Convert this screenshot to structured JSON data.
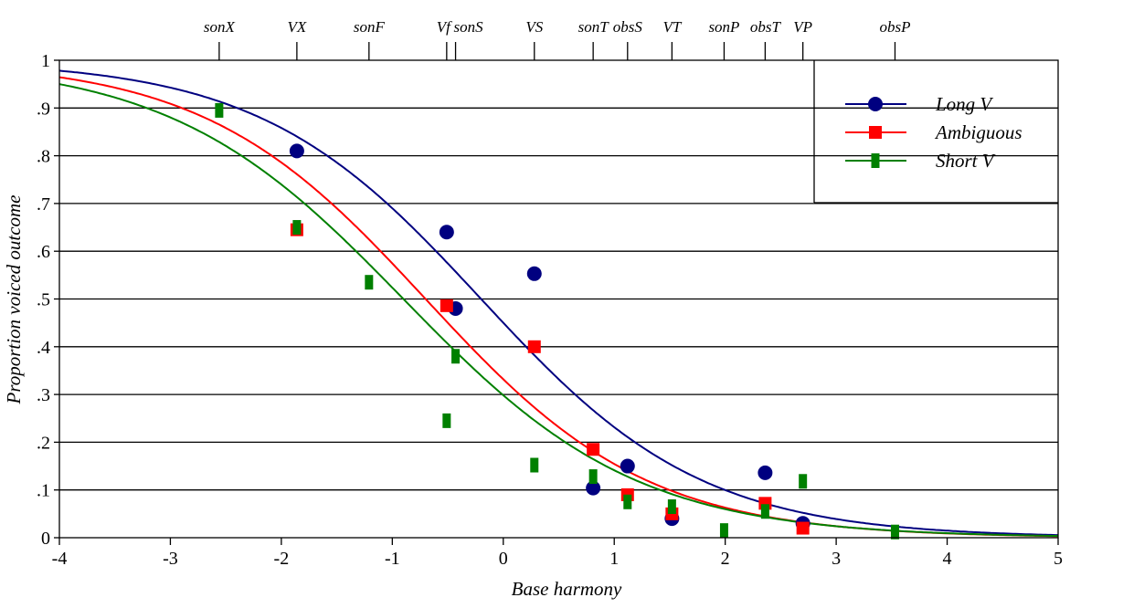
{
  "chart_data": {
    "type": "scatter",
    "title": "",
    "xlabel": "Base harmony",
    "ylabel": "Proportion voiced outcome",
    "xlim": [
      -4,
      5
    ],
    "ylim": [
      0,
      1
    ],
    "xticks": [
      -4,
      -3,
      -2,
      -1,
      0,
      1,
      2,
      3,
      4,
      5
    ],
    "xtick_labels": [
      "-4",
      "-3",
      "-2",
      "-1",
      "0",
      "1",
      "2",
      "3",
      "4",
      "5"
    ],
    "yticks": [
      0,
      0.1,
      0.2,
      0.3,
      0.4,
      0.5,
      0.6,
      0.7,
      0.8,
      0.9,
      1
    ],
    "ytick_labels": [
      "0",
      ".1",
      ".2",
      ".3",
      ".4",
      ".5",
      ".6",
      ".7",
      ".8",
      ".9",
      "1"
    ],
    "grid": "horizontal",
    "legend_position": "top-right",
    "categories": [
      "sonX",
      "VX",
      "sonF",
      "Vf",
      "sonS",
      "VS",
      "sonT",
      "obsS",
      "VT",
      "sonP",
      "obsT",
      "VP",
      "obsP"
    ],
    "category_x": [
      -2.56,
      -1.86,
      -1.21,
      -0.51,
      -0.43,
      0.28,
      0.81,
      1.12,
      1.52,
      1.99,
      2.36,
      2.7,
      3.53
    ],
    "series": [
      {
        "name": "Long V",
        "color": "#000080",
        "marker": "circle",
        "values": [
          null,
          0.81,
          null,
          0.64,
          0.48,
          0.553,
          0.104,
          0.15,
          0.04,
          null,
          0.136,
          0.03,
          null
        ],
        "curve": {
          "form": "logistic",
          "slope": 1.0,
          "midpoint": -0.2
        }
      },
      {
        "name": "Ambiguous",
        "color": "#ff0000",
        "marker": "square",
        "values": [
          null,
          0.645,
          null,
          0.486,
          null,
          0.4,
          0.185,
          0.09,
          0.05,
          null,
          0.072,
          0.02,
          null
        ],
        "curve": {
          "form": "logistic",
          "slope": 1.0,
          "midpoint": -0.7
        }
      },
      {
        "name": "Short V",
        "color": "#008000",
        "marker": "bar",
        "values": [
          0.895,
          0.65,
          0.535,
          0.245,
          0.38,
          0.152,
          0.128,
          0.075,
          0.065,
          0.015,
          0.055,
          0.118,
          0.012
        ],
        "curve": {
          "form": "logistic",
          "slope": 0.95,
          "midpoint": -0.9
        }
      }
    ]
  }
}
